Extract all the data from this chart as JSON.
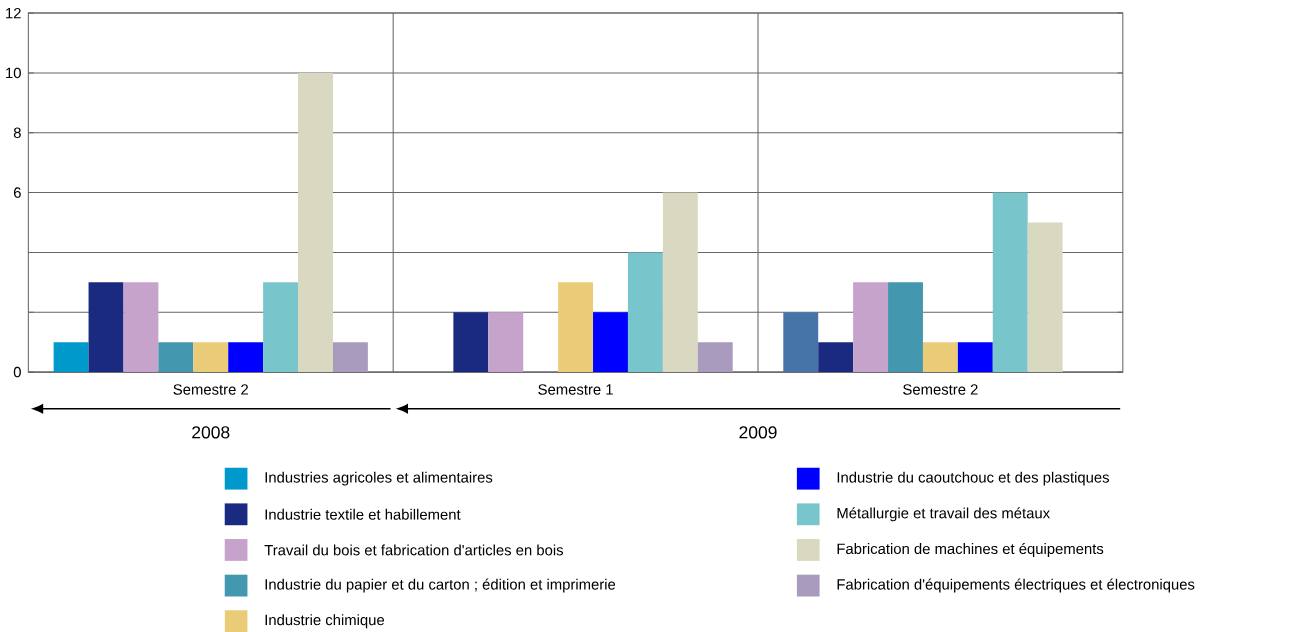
{
  "chart_data": {
    "type": "bar",
    "categories": [
      "Semestre 2",
      "Semestre 1",
      "Semestre 2"
    ],
    "ylim": [
      0,
      12
    ],
    "yticks": [
      0,
      {
        "value": 2,
        "label": null
      },
      {
        "value": 4,
        "label": null
      },
      6,
      8,
      10,
      12
    ],
    "grid": "y",
    "legend": "bottom",
    "annotations": [
      "2008",
      "2009"
    ],
    "series": [
      {
        "name": "Industries agricoles et alimentaires",
        "color": "#0099cc",
        "colors": [
          "#0099cc",
          "#0099cc",
          "#4674a8"
        ],
        "values": [
          1,
          null,
          2
        ]
      },
      {
        "name": "Industrie textile et habillement",
        "color": "#1a2a80",
        "values": [
          3,
          2,
          1
        ]
      },
      {
        "name": "Travail du bois et fabrication d'articles en bois",
        "color": "#c5a3cb",
        "values": [
          3,
          2,
          3
        ]
      },
      {
        "name": "Industrie du papier et du carton ; édition et imprimerie",
        "color": "#4398b0",
        "values": [
          1,
          null,
          3
        ]
      },
      {
        "name": "Industrie chimique",
        "color": "#eacb78",
        "values": [
          1,
          3,
          1
        ]
      },
      {
        "name": "Industrie du caoutchouc et des plastiques",
        "color": "#0000ff",
        "values": [
          1,
          2,
          1
        ]
      },
      {
        "name": "Métallurgie et travail des métaux",
        "color": "#78c5cb",
        "values": [
          3,
          4,
          6
        ]
      },
      {
        "name": "Fabrication de machines et équipements",
        "color": "#d8d9c0",
        "values": [
          10,
          6,
          5
        ]
      },
      {
        "name": "Fabrication d'équipements électriques et électroniques",
        "color": "#a99bbd",
        "values": [
          1,
          1,
          null
        ]
      }
    ]
  }
}
